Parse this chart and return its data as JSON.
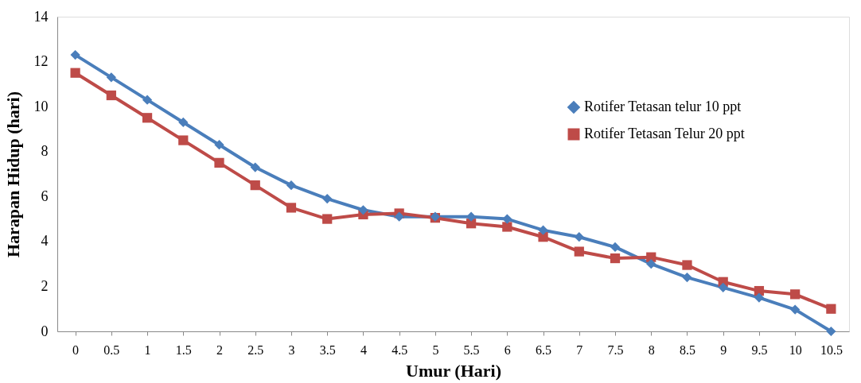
{
  "chart_data": {
    "type": "line",
    "xlabel": "Umur (Hari)",
    "ylabel": "Harapan Hidup (hari)",
    "categories": [
      "0",
      "0.5",
      "1",
      "1.5",
      "2",
      "2.5",
      "3",
      "3.5",
      "4",
      "4.5",
      "5",
      "5.5",
      "6",
      "6.5",
      "7",
      "7.5",
      "8",
      "8.5",
      "9",
      "9.5",
      "10",
      "10.5"
    ],
    "series": [
      {
        "name": "Rotifer Tetasan telur 10 ppt",
        "color": "#4a7ebb",
        "marker": "diamond",
        "values": [
          12.3,
          11.3,
          10.3,
          9.3,
          8.3,
          7.3,
          6.5,
          5.9,
          5.4,
          5.1,
          5.1,
          5.1,
          5.0,
          4.5,
          4.2,
          3.75,
          3.0,
          2.4,
          1.95,
          1.5,
          0.97,
          0
        ]
      },
      {
        "name": "Rotifer Tetasan Telur 20 ppt",
        "color": "#be4b48",
        "marker": "square",
        "values": [
          11.5,
          10.5,
          9.5,
          8.5,
          7.5,
          6.5,
          5.5,
          5.0,
          5.2,
          5.25,
          5.05,
          4.8,
          4.65,
          4.2,
          3.55,
          3.25,
          3.3,
          2.95,
          2.2,
          1.8,
          1.65,
          1.0
        ]
      }
    ],
    "ylim": [
      0,
      14
    ],
    "yticks": [
      0,
      2,
      4,
      6,
      8,
      10,
      12,
      14
    ],
    "grid": false,
    "legend": "top right",
    "line_style": "solid"
  }
}
